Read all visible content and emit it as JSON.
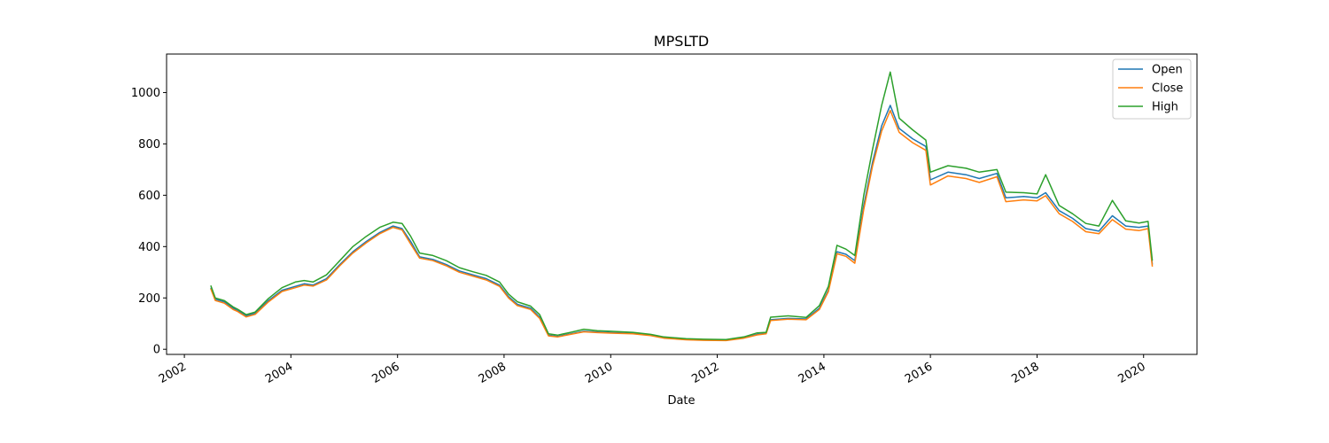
{
  "chart_data": {
    "type": "line",
    "title": "MPSLTD",
    "xlabel": "Date",
    "ylabel": "",
    "xlim": [
      "2001-09-01",
      "2021-01-01"
    ],
    "ylim": [
      -20,
      1150
    ],
    "x_ticks": [
      "2002",
      "2004",
      "2006",
      "2008",
      "2010",
      "2012",
      "2014",
      "2016",
      "2018",
      "2020"
    ],
    "y_ticks": [
      0,
      200,
      400,
      600,
      800,
      1000
    ],
    "grid": false,
    "legend_position": "top-right",
    "series": [
      {
        "name": "Open",
        "color": "#1f77b4",
        "points": [
          [
            "2002-07-01",
            240
          ],
          [
            "2002-08-01",
            195
          ],
          [
            "2002-10-01",
            185
          ],
          [
            "2002-12-01",
            160
          ],
          [
            "2003-01-01",
            150
          ],
          [
            "2003-03-01",
            130
          ],
          [
            "2003-05-01",
            140
          ],
          [
            "2003-08-01",
            190
          ],
          [
            "2003-11-01",
            230
          ],
          [
            "2004-02-01",
            245
          ],
          [
            "2004-04-01",
            255
          ],
          [
            "2004-06-01",
            250
          ],
          [
            "2004-09-01",
            275
          ],
          [
            "2004-12-01",
            330
          ],
          [
            "2005-03-01",
            380
          ],
          [
            "2005-06-01",
            420
          ],
          [
            "2005-09-01",
            455
          ],
          [
            "2005-12-01",
            480
          ],
          [
            "2006-02-01",
            470
          ],
          [
            "2006-04-01",
            420
          ],
          [
            "2006-06-01",
            360
          ],
          [
            "2006-09-01",
            350
          ],
          [
            "2006-12-01",
            330
          ],
          [
            "2007-03-01",
            305
          ],
          [
            "2007-06-01",
            290
          ],
          [
            "2007-09-01",
            275
          ],
          [
            "2007-12-01",
            250
          ],
          [
            "2008-02-01",
            205
          ],
          [
            "2008-04-01",
            175
          ],
          [
            "2008-07-01",
            160
          ],
          [
            "2008-09-01",
            125
          ],
          [
            "2008-11-01",
            55
          ],
          [
            "2009-01-01",
            50
          ],
          [
            "2009-04-01",
            60
          ],
          [
            "2009-07-01",
            70
          ],
          [
            "2009-10-01",
            67
          ],
          [
            "2010-01-01",
            65
          ],
          [
            "2010-06-01",
            62
          ],
          [
            "2010-10-01",
            55
          ],
          [
            "2011-01-01",
            45
          ],
          [
            "2011-06-01",
            38
          ],
          [
            "2011-10-01",
            36
          ],
          [
            "2012-03-01",
            35
          ],
          [
            "2012-07-01",
            45
          ],
          [
            "2012-10-01",
            58
          ],
          [
            "2012-12-01",
            62
          ],
          [
            "2013-01-01",
            115
          ],
          [
            "2013-05-01",
            120
          ],
          [
            "2013-09-01",
            118
          ],
          [
            "2013-12-01",
            160
          ],
          [
            "2014-02-01",
            230
          ],
          [
            "2014-04-01",
            380
          ],
          [
            "2014-06-01",
            370
          ],
          [
            "2014-08-01",
            345
          ],
          [
            "2014-10-01",
            560
          ],
          [
            "2014-12-01",
            730
          ],
          [
            "2015-02-01",
            870
          ],
          [
            "2015-04-01",
            950
          ],
          [
            "2015-06-01",
            860
          ],
          [
            "2015-09-01",
            820
          ],
          [
            "2015-12-01",
            790
          ],
          [
            "2016-01-01",
            660
          ],
          [
            "2016-05-01",
            690
          ],
          [
            "2016-09-01",
            680
          ],
          [
            "2016-12-01",
            665
          ],
          [
            "2017-04-01",
            685
          ],
          [
            "2017-06-01",
            590
          ],
          [
            "2017-10-01",
            595
          ],
          [
            "2018-01-01",
            590
          ],
          [
            "2018-03-01",
            610
          ],
          [
            "2018-06-01",
            540
          ],
          [
            "2018-09-01",
            510
          ],
          [
            "2018-12-01",
            470
          ],
          [
            "2019-03-01",
            460
          ],
          [
            "2019-06-01",
            520
          ],
          [
            "2019-09-01",
            480
          ],
          [
            "2019-12-01",
            475
          ],
          [
            "2020-02-01",
            480
          ],
          [
            "2020-03-01",
            330
          ]
        ]
      },
      {
        "name": "Close",
        "color": "#ff7f0e",
        "points": [
          [
            "2002-07-01",
            236
          ],
          [
            "2002-08-01",
            190
          ],
          [
            "2002-10-01",
            180
          ],
          [
            "2002-12-01",
            155
          ],
          [
            "2003-01-01",
            147
          ],
          [
            "2003-03-01",
            126
          ],
          [
            "2003-05-01",
            136
          ],
          [
            "2003-08-01",
            185
          ],
          [
            "2003-11-01",
            225
          ],
          [
            "2004-02-01",
            240
          ],
          [
            "2004-04-01",
            250
          ],
          [
            "2004-06-01",
            246
          ],
          [
            "2004-09-01",
            270
          ],
          [
            "2004-12-01",
            325
          ],
          [
            "2005-03-01",
            375
          ],
          [
            "2005-06-01",
            415
          ],
          [
            "2005-09-01",
            450
          ],
          [
            "2005-12-01",
            475
          ],
          [
            "2006-02-01",
            465
          ],
          [
            "2006-04-01",
            410
          ],
          [
            "2006-06-01",
            355
          ],
          [
            "2006-09-01",
            345
          ],
          [
            "2006-12-01",
            325
          ],
          [
            "2007-03-01",
            300
          ],
          [
            "2007-06-01",
            285
          ],
          [
            "2007-09-01",
            270
          ],
          [
            "2007-12-01",
            245
          ],
          [
            "2008-02-01",
            200
          ],
          [
            "2008-04-01",
            170
          ],
          [
            "2008-07-01",
            155
          ],
          [
            "2008-09-01",
            120
          ],
          [
            "2008-11-01",
            52
          ],
          [
            "2009-01-01",
            48
          ],
          [
            "2009-04-01",
            58
          ],
          [
            "2009-07-01",
            68
          ],
          [
            "2009-10-01",
            65
          ],
          [
            "2010-01-01",
            63
          ],
          [
            "2010-06-01",
            60
          ],
          [
            "2010-10-01",
            53
          ],
          [
            "2011-01-01",
            43
          ],
          [
            "2011-06-01",
            37
          ],
          [
            "2011-10-01",
            35
          ],
          [
            "2012-03-01",
            34
          ],
          [
            "2012-07-01",
            43
          ],
          [
            "2012-10-01",
            56
          ],
          [
            "2012-12-01",
            60
          ],
          [
            "2013-01-01",
            112
          ],
          [
            "2013-05-01",
            117
          ],
          [
            "2013-09-01",
            115
          ],
          [
            "2013-12-01",
            155
          ],
          [
            "2014-02-01",
            225
          ],
          [
            "2014-04-01",
            372
          ],
          [
            "2014-06-01",
            362
          ],
          [
            "2014-08-01",
            335
          ],
          [
            "2014-10-01",
            545
          ],
          [
            "2014-12-01",
            715
          ],
          [
            "2015-02-01",
            850
          ],
          [
            "2015-04-01",
            930
          ],
          [
            "2015-06-01",
            845
          ],
          [
            "2015-09-01",
            805
          ],
          [
            "2015-12-01",
            775
          ],
          [
            "2016-01-01",
            640
          ],
          [
            "2016-05-01",
            675
          ],
          [
            "2016-09-01",
            665
          ],
          [
            "2016-12-01",
            650
          ],
          [
            "2017-04-01",
            672
          ],
          [
            "2017-06-01",
            575
          ],
          [
            "2017-10-01",
            582
          ],
          [
            "2018-01-01",
            578
          ],
          [
            "2018-03-01",
            598
          ],
          [
            "2018-06-01",
            528
          ],
          [
            "2018-09-01",
            498
          ],
          [
            "2018-12-01",
            458
          ],
          [
            "2019-03-01",
            450
          ],
          [
            "2019-06-01",
            505
          ],
          [
            "2019-09-01",
            468
          ],
          [
            "2019-12-01",
            462
          ],
          [
            "2020-02-01",
            470
          ],
          [
            "2020-03-01",
            322
          ]
        ]
      },
      {
        "name": "High",
        "color": "#2ca02c",
        "points": [
          [
            "2002-07-01",
            248
          ],
          [
            "2002-08-01",
            200
          ],
          [
            "2002-10-01",
            190
          ],
          [
            "2002-12-01",
            165
          ],
          [
            "2003-01-01",
            156
          ],
          [
            "2003-03-01",
            135
          ],
          [
            "2003-05-01",
            145
          ],
          [
            "2003-08-01",
            198
          ],
          [
            "2003-11-01",
            240
          ],
          [
            "2004-02-01",
            262
          ],
          [
            "2004-04-01",
            268
          ],
          [
            "2004-06-01",
            262
          ],
          [
            "2004-09-01",
            290
          ],
          [
            "2004-12-01",
            345
          ],
          [
            "2005-03-01",
            400
          ],
          [
            "2005-06-01",
            440
          ],
          [
            "2005-09-01",
            475
          ],
          [
            "2005-12-01",
            495
          ],
          [
            "2006-02-01",
            490
          ],
          [
            "2006-04-01",
            440
          ],
          [
            "2006-06-01",
            375
          ],
          [
            "2006-09-01",
            365
          ],
          [
            "2006-12-01",
            345
          ],
          [
            "2007-03-01",
            318
          ],
          [
            "2007-06-01",
            302
          ],
          [
            "2007-09-01",
            288
          ],
          [
            "2007-12-01",
            262
          ],
          [
            "2008-02-01",
            215
          ],
          [
            "2008-04-01",
            185
          ],
          [
            "2008-07-01",
            168
          ],
          [
            "2008-09-01",
            135
          ],
          [
            "2008-11-01",
            60
          ],
          [
            "2009-01-01",
            55
          ],
          [
            "2009-04-01",
            66
          ],
          [
            "2009-07-01",
            78
          ],
          [
            "2009-10-01",
            72
          ],
          [
            "2010-01-01",
            70
          ],
          [
            "2010-06-01",
            66
          ],
          [
            "2010-10-01",
            58
          ],
          [
            "2011-01-01",
            48
          ],
          [
            "2011-06-01",
            41
          ],
          [
            "2011-10-01",
            39
          ],
          [
            "2012-03-01",
            38
          ],
          [
            "2012-07-01",
            48
          ],
          [
            "2012-10-01",
            64
          ],
          [
            "2012-12-01",
            66
          ],
          [
            "2013-01-01",
            125
          ],
          [
            "2013-05-01",
            130
          ],
          [
            "2013-09-01",
            124
          ],
          [
            "2013-12-01",
            170
          ],
          [
            "2014-02-01",
            245
          ],
          [
            "2014-04-01",
            405
          ],
          [
            "2014-06-01",
            390
          ],
          [
            "2014-08-01",
            365
          ],
          [
            "2014-10-01",
            600
          ],
          [
            "2014-12-01",
            780
          ],
          [
            "2015-02-01",
            950
          ],
          [
            "2015-04-01",
            1080
          ],
          [
            "2015-06-01",
            900
          ],
          [
            "2015-09-01",
            855
          ],
          [
            "2015-12-01",
            815
          ],
          [
            "2016-01-01",
            690
          ],
          [
            "2016-05-01",
            715
          ],
          [
            "2016-09-01",
            705
          ],
          [
            "2016-12-01",
            690
          ],
          [
            "2017-04-01",
            700
          ],
          [
            "2017-06-01",
            612
          ],
          [
            "2017-10-01",
            610
          ],
          [
            "2018-01-01",
            605
          ],
          [
            "2018-03-01",
            680
          ],
          [
            "2018-06-01",
            560
          ],
          [
            "2018-09-01",
            528
          ],
          [
            "2018-12-01",
            490
          ],
          [
            "2019-03-01",
            480
          ],
          [
            "2019-06-01",
            580
          ],
          [
            "2019-09-01",
            500
          ],
          [
            "2019-12-01",
            492
          ],
          [
            "2020-02-01",
            498
          ],
          [
            "2020-03-01",
            345
          ]
        ]
      }
    ]
  }
}
